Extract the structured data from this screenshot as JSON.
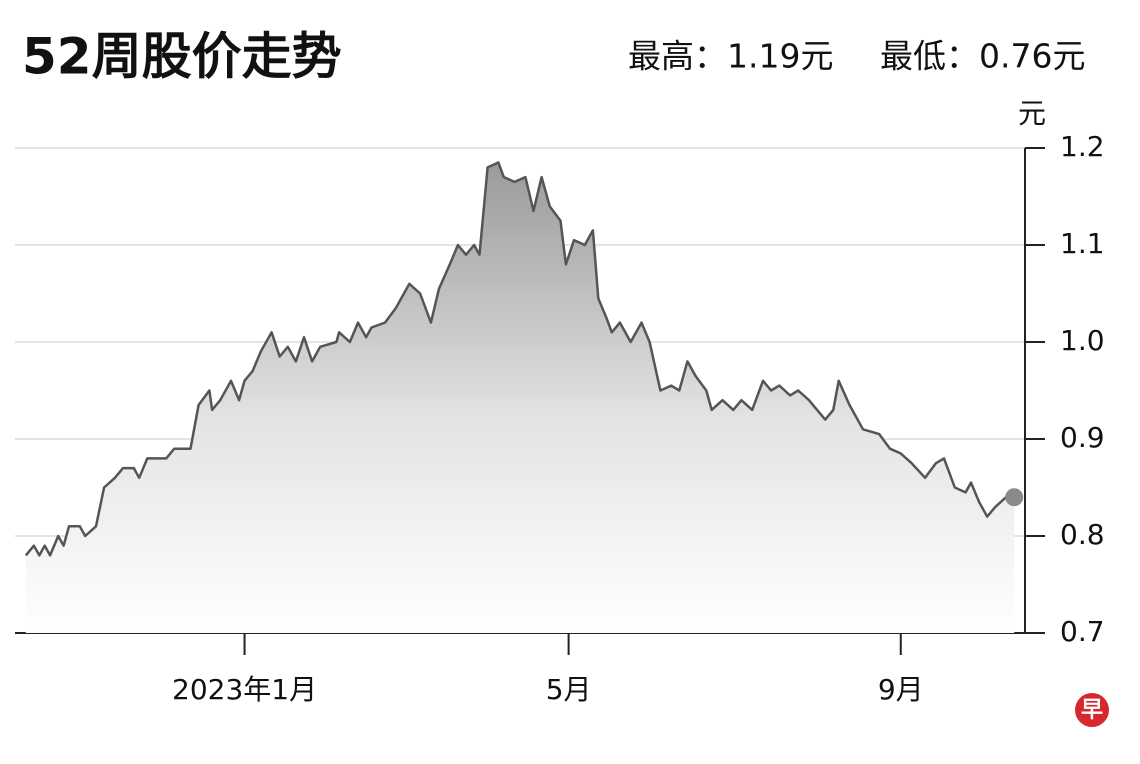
{
  "chart_data": {
    "type": "area",
    "title": "52周股价走势",
    "annotations": [
      "最高：1.19元",
      "最低：0.76元"
    ],
    "y_label": "元",
    "logo": "早",
    "color": "#555555",
    "x": [
      -81,
      -78,
      -76,
      -74,
      -72,
      -69,
      -67,
      -65,
      -61,
      -59,
      -55,
      -52,
      -48,
      -45,
      -41,
      -39,
      -36,
      -29,
      -26,
      -20,
      -17,
      -13,
      -12,
      -9,
      -5,
      -2,
      0,
      3,
      6,
      10,
      13,
      16,
      19,
      22,
      25,
      28,
      34,
      35,
      39,
      42,
      45,
      47,
      52,
      56,
      61,
      65,
      69,
      72,
      76,
      79,
      82,
      85,
      87,
      90,
      94,
      96,
      100,
      104,
      107,
      110,
      113,
      117,
      119,
      122,
      126,
      129,
      131,
      134,
      136,
      139,
      143,
      147,
      150,
      154,
      158,
      161,
      164,
      167,
      171,
      173,
      177,
      181,
      184,
      188,
      192,
      195,
      198,
      202,
      205,
      209,
      212,
      215,
      218,
      220,
      224,
      229,
      235,
      239,
      243,
      247,
      252,
      256,
      259,
      263,
      267,
      269,
      272,
      275,
      278,
      282,
      285
    ],
    "values": [
      0.78,
      0.79,
      0.78,
      0.79,
      0.78,
      0.8,
      0.79,
      0.81,
      0.81,
      0.8,
      0.81,
      0.85,
      0.86,
      0.87,
      0.87,
      0.86,
      0.88,
      0.88,
      0.89,
      0.89,
      0.935,
      0.95,
      0.93,
      0.94,
      0.96,
      0.94,
      0.96,
      0.97,
      0.99,
      1.01,
      0.985,
      0.995,
      0.98,
      1.005,
      0.98,
      0.995,
      1.0,
      1.01,
      1.0,
      1.02,
      1.005,
      1.015,
      1.02,
      1.035,
      1.06,
      1.05,
      1.02,
      1.055,
      1.08,
      1.1,
      1.09,
      1.1,
      1.09,
      1.18,
      1.185,
      1.17,
      1.165,
      1.17,
      1.135,
      1.17,
      1.14,
      1.125,
      1.08,
      1.105,
      1.1,
      1.115,
      1.045,
      1.025,
      1.01,
      1.02,
      1.0,
      1.02,
      1.0,
      0.95,
      0.955,
      0.95,
      0.98,
      0.965,
      0.95,
      0.93,
      0.94,
      0.93,
      0.94,
      0.93,
      0.96,
      0.95,
      0.955,
      0.945,
      0.95,
      0.94,
      0.93,
      0.92,
      0.93,
      0.96,
      0.935,
      0.91,
      0.905,
      0.89,
      0.885,
      0.875,
      0.86,
      0.875,
      0.88,
      0.85,
      0.845,
      0.855,
      0.835,
      0.82,
      0.83,
      0.84,
      0.84
    ],
    "xlim": [
      -85,
      289
    ],
    "xticks": [
      {
        "value": 0,
        "label": "2023年1月"
      },
      {
        "value": 120,
        "label": "5月"
      },
      {
        "value": 243,
        "label": "9月"
      }
    ],
    "ylim": [
      0.7,
      1.2
    ],
    "yticks": [
      0.7,
      0.8,
      0.9,
      {
        "value": 1,
        "label": "1.0"
      },
      1.1,
      1.2
    ],
    "grid": true
  }
}
